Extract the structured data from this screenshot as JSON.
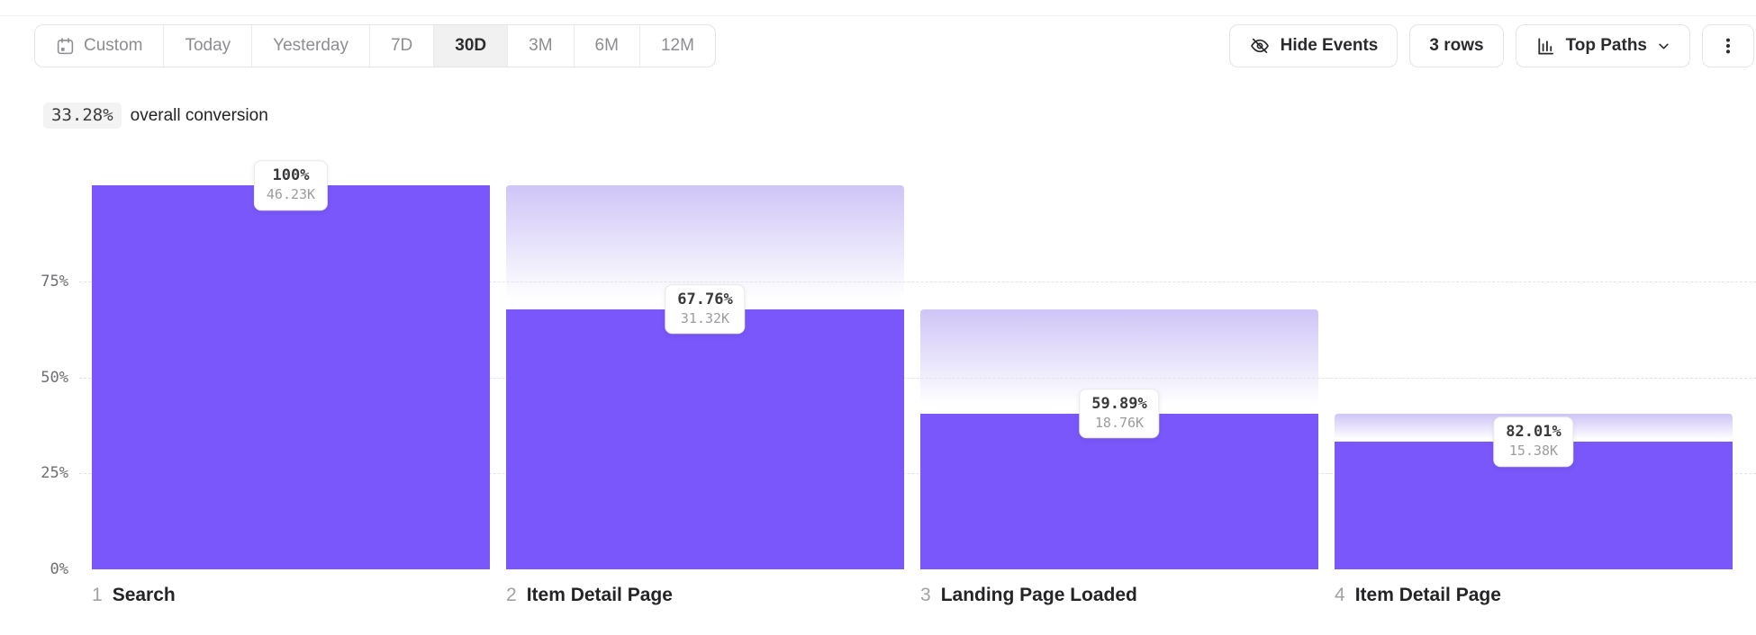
{
  "toolbar": {
    "date_ranges": [
      {
        "label": "Custom",
        "icon": "calendar-icon"
      },
      {
        "label": "Today"
      },
      {
        "label": "Yesterday"
      },
      {
        "label": "7D"
      },
      {
        "label": "30D"
      },
      {
        "label": "3M"
      },
      {
        "label": "6M"
      },
      {
        "label": "12M"
      }
    ],
    "selected_range": "30D",
    "hide_events_label": "Hide Events",
    "rows_label": "3 rows",
    "view_mode_label": "Top Paths"
  },
  "summary": {
    "conversion_pct": "33.28%",
    "text": "overall conversion"
  },
  "chart_data": {
    "type": "bar",
    "subtype": "funnel",
    "title": "33.28% overall conversion",
    "ylim": [
      0,
      100
    ],
    "grid": true,
    "grid_pcts": [
      25,
      50,
      75
    ],
    "yticks": [
      {
        "label": "0%",
        "value": 0
      },
      {
        "label": "25%",
        "value": 25
      },
      {
        "label": "50%",
        "value": 50
      },
      {
        "label": "75%",
        "value": 75
      }
    ],
    "steps": [
      {
        "index": "1",
        "label": "Search",
        "conversion_label": "100%",
        "count_label": "46.23K",
        "count": 46230,
        "overall_pct": 100,
        "step_pct": 100
      },
      {
        "index": "2",
        "label": "Item Detail Page",
        "conversion_label": "67.76%",
        "count_label": "31.32K",
        "count": 31320,
        "overall_pct": 67.76,
        "step_pct": 67.76
      },
      {
        "index": "3",
        "label": "Landing Page Loaded",
        "conversion_label": "59.89%",
        "count_label": "18.76K",
        "count": 18760,
        "overall_pct": 40.58,
        "step_pct": 59.89
      },
      {
        "index": "4",
        "label": "Item Detail Page",
        "conversion_label": "82.01%",
        "count_label": "15.38K",
        "count": 15380,
        "overall_pct": 33.27,
        "step_pct": 82.01
      }
    ],
    "colors": {
      "bar": "#7a57fa",
      "ghost_top": "#cfc5f7",
      "ghost_bottom": "#ffffff",
      "grid": "#e3e3e6"
    }
  }
}
